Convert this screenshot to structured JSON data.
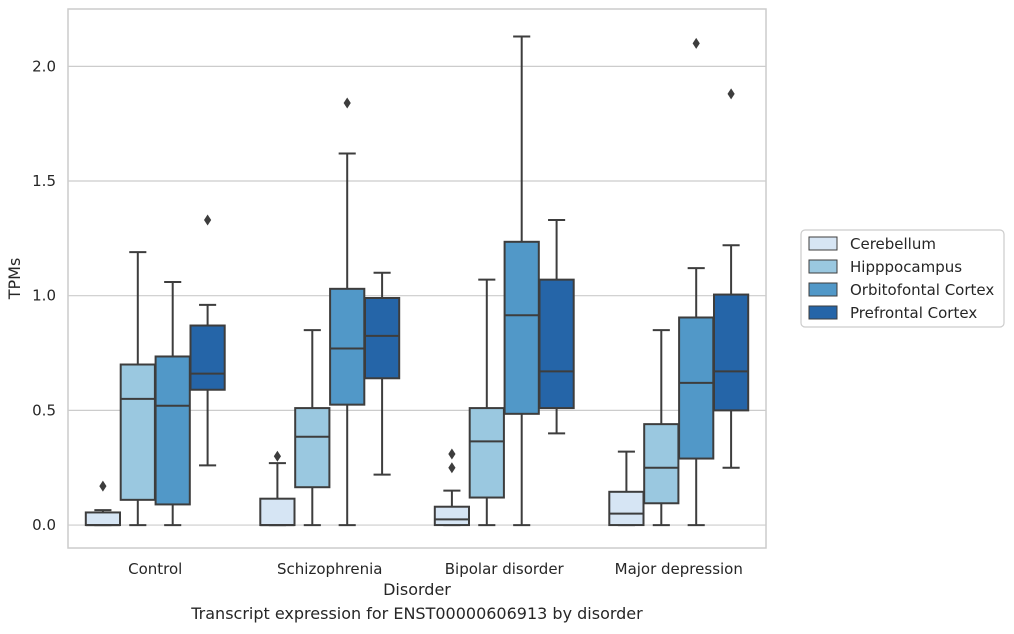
{
  "caption": "Transcript expression for ENST00000606913 by disorder",
  "chart_data": {
    "type": "box",
    "title": "",
    "xlabel": "Disorder",
    "ylabel": "TPMs",
    "ylim": [
      -0.1,
      2.25
    ],
    "yticks": [
      0.0,
      0.5,
      1.0,
      1.5,
      2.0
    ],
    "ytick_labels": [
      "0.0",
      "0.5",
      "1.0",
      "1.5",
      "2.0"
    ],
    "grid": "horizontal",
    "legend_position": "right",
    "categories": [
      "Control",
      "Schizophrenia",
      "Bipolar disorder",
      "Major depression"
    ],
    "series": [
      {
        "name": "Cerebellum",
        "color": "#d6e5f4",
        "boxes": [
          {
            "whisker_low": 0.0,
            "q1": 0.0,
            "median": 0.0,
            "q3": 0.055,
            "whisker_high": 0.065,
            "outliers": [
              0.17
            ]
          },
          {
            "whisker_low": 0.0,
            "q1": 0.0,
            "median": 0.0,
            "q3": 0.115,
            "whisker_high": 0.27,
            "outliers": [
              0.3
            ]
          },
          {
            "whisker_low": 0.0,
            "q1": 0.0,
            "median": 0.025,
            "q3": 0.08,
            "whisker_high": 0.15,
            "outliers": [
              0.25,
              0.31
            ]
          },
          {
            "whisker_low": 0.0,
            "q1": 0.0,
            "median": 0.05,
            "q3": 0.145,
            "whisker_high": 0.32,
            "outliers": []
          }
        ]
      },
      {
        "name": "Hipppocampus",
        "color": "#9ac8e0",
        "boxes": [
          {
            "whisker_low": 0.0,
            "q1": 0.11,
            "median": 0.55,
            "q3": 0.7,
            "whisker_high": 1.19,
            "outliers": []
          },
          {
            "whisker_low": 0.0,
            "q1": 0.165,
            "median": 0.385,
            "q3": 0.51,
            "whisker_high": 0.85,
            "outliers": []
          },
          {
            "whisker_low": 0.0,
            "q1": 0.12,
            "median": 0.365,
            "q3": 0.51,
            "whisker_high": 1.07,
            "outliers": []
          },
          {
            "whisker_low": 0.0,
            "q1": 0.095,
            "median": 0.25,
            "q3": 0.44,
            "whisker_high": 0.85,
            "outliers": []
          }
        ]
      },
      {
        "name": "Orbitofontal Cortex",
        "color": "#5198c8",
        "boxes": [
          {
            "whisker_low": 0.0,
            "q1": 0.09,
            "median": 0.52,
            "q3": 0.735,
            "whisker_high": 1.06,
            "outliers": []
          },
          {
            "whisker_low": 0.0,
            "q1": 0.525,
            "median": 0.77,
            "q3": 1.03,
            "whisker_high": 1.62,
            "outliers": [
              1.84
            ]
          },
          {
            "whisker_low": 0.0,
            "q1": 0.485,
            "median": 0.915,
            "q3": 1.235,
            "whisker_high": 2.13,
            "outliers": []
          },
          {
            "whisker_low": 0.0,
            "q1": 0.29,
            "median": 0.62,
            "q3": 0.905,
            "whisker_high": 1.12,
            "outliers": [
              2.1
            ]
          }
        ]
      },
      {
        "name": "Prefrontal Cortex",
        "color": "#2565a8",
        "boxes": [
          {
            "whisker_low": 0.26,
            "q1": 0.59,
            "median": 0.66,
            "q3": 0.87,
            "whisker_high": 0.96,
            "outliers": [
              1.33
            ]
          },
          {
            "whisker_low": 0.22,
            "q1": 0.64,
            "median": 0.825,
            "q3": 0.99,
            "whisker_high": 1.1,
            "outliers": []
          },
          {
            "whisker_low": 0.4,
            "q1": 0.51,
            "median": 0.67,
            "q3": 1.07,
            "whisker_high": 1.33,
            "outliers": []
          },
          {
            "whisker_low": 0.25,
            "q1": 0.5,
            "median": 0.67,
            "q3": 1.005,
            "whisker_high": 1.22,
            "outliers": [
              1.88
            ]
          }
        ]
      }
    ]
  }
}
